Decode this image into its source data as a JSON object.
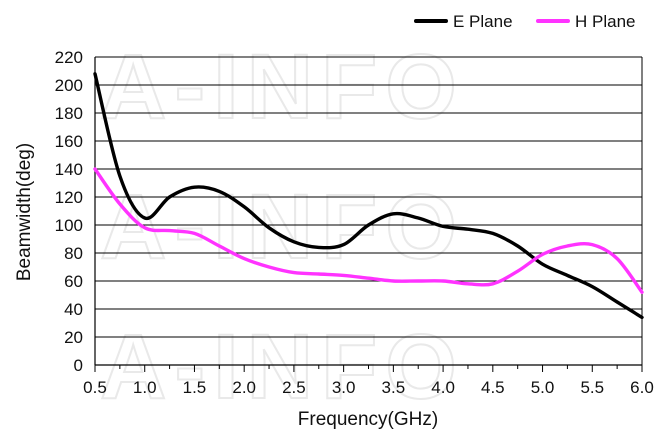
{
  "watermark": "A-INFO",
  "chart_data": {
    "type": "line",
    "title": "",
    "xlabel": "Frequency(GHz)",
    "ylabel": "Beamwidth(deg)",
    "xlim": [
      0.5,
      6.0
    ],
    "ylim": [
      0,
      220
    ],
    "xticks": [
      "0.5",
      "1.0",
      "1.5",
      "2.0",
      "2.5",
      "3.0",
      "3.5",
      "4.0",
      "4.5",
      "5.0",
      "5.5",
      "6.0"
    ],
    "yticks": [
      "0",
      "20",
      "40",
      "60",
      "80",
      "100",
      "120",
      "140",
      "160",
      "180",
      "200",
      "220"
    ],
    "grid": "horizontal",
    "legend_position": "top-right",
    "series": [
      {
        "name": "E Plane",
        "color": "#000000",
        "x": [
          0.5,
          0.75,
          1.0,
          1.25,
          1.5,
          1.75,
          2.0,
          2.25,
          2.5,
          2.75,
          3.0,
          3.25,
          3.5,
          3.75,
          4.0,
          4.25,
          4.5,
          4.75,
          5.0,
          5.25,
          5.5,
          5.75,
          6.0
        ],
        "y": [
          208,
          135,
          105,
          120,
          127,
          124,
          113,
          98,
          88,
          84,
          86,
          100,
          108,
          105,
          99,
          97,
          94,
          85,
          72,
          64,
          56,
          45,
          34
        ]
      },
      {
        "name": "H Plane",
        "color": "#ff33ff",
        "x": [
          0.5,
          0.75,
          1.0,
          1.25,
          1.5,
          1.75,
          2.0,
          2.25,
          2.5,
          2.75,
          3.0,
          3.25,
          3.5,
          3.75,
          4.0,
          4.25,
          4.5,
          4.75,
          5.0,
          5.25,
          5.5,
          5.75,
          6.0
        ],
        "y": [
          140,
          115,
          98,
          96,
          94,
          85,
          76,
          70,
          66,
          65,
          64,
          62,
          60,
          60,
          60,
          58,
          58,
          67,
          79,
          85,
          86,
          76,
          52
        ]
      }
    ]
  }
}
